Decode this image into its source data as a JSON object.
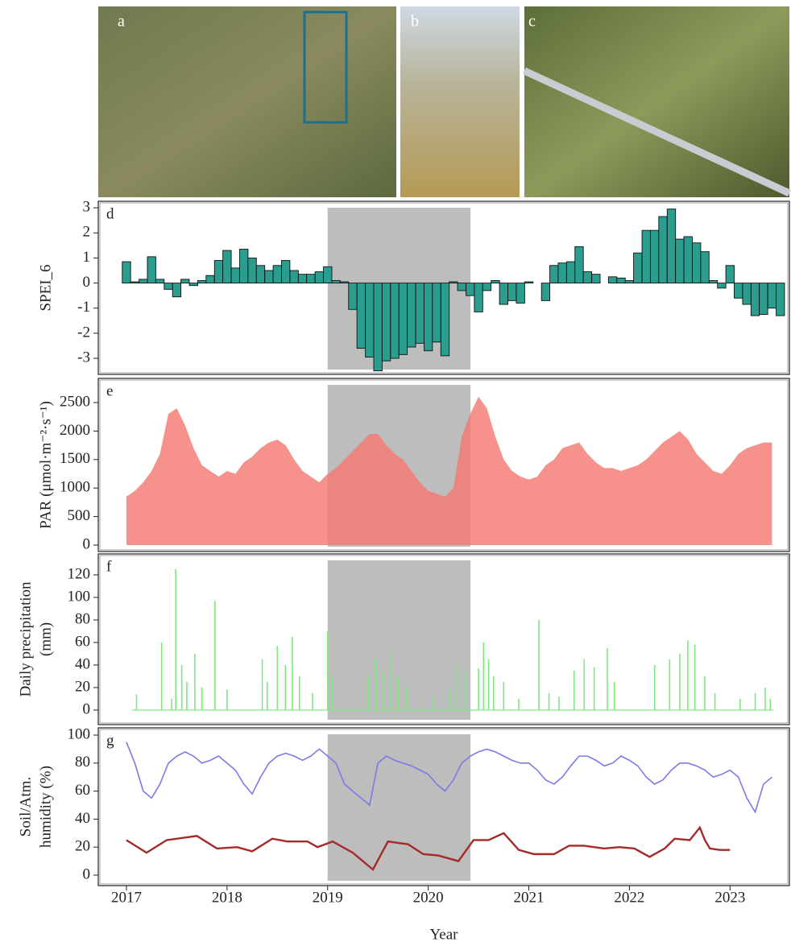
{
  "images": {
    "labels": [
      "a",
      "b",
      "c"
    ]
  },
  "chart_data": [
    {
      "type": "bar",
      "panel_label": "d",
      "ylabel": [
        "SPEI_6"
      ],
      "color": "#2a9d8f",
      "shaded_xrange": [
        2019.0,
        2020.42
      ],
      "xlim": [
        2016.72,
        2023.59
      ],
      "ylim": [
        -3.64,
        3.26
      ],
      "yticks": [
        -3,
        -2,
        -1,
        0,
        1,
        2,
        3
      ],
      "x": [
        2017,
        2017.083,
        2017.167,
        2017.25,
        2017.333,
        2017.417,
        2017.5,
        2017.583,
        2017.667,
        2017.75,
        2017.833,
        2017.917,
        2018,
        2018.083,
        2018.167,
        2018.25,
        2018.333,
        2018.417,
        2018.5,
        2018.583,
        2018.667,
        2018.75,
        2018.833,
        2018.917,
        2019,
        2019.083,
        2019.167,
        2019.25,
        2019.333,
        2019.417,
        2019.5,
        2019.583,
        2019.667,
        2019.75,
        2019.833,
        2019.917,
        2020,
        2020.083,
        2020.167,
        2020.25,
        2020.333,
        2020.417,
        2020.5,
        2020.583,
        2020.667,
        2020.75,
        2020.833,
        2020.917,
        2021,
        2021.083,
        2021.167,
        2021.25,
        2021.333,
        2021.417,
        2021.5,
        2021.583,
        2021.667,
        2021.75,
        2021.833,
        2021.917,
        2022,
        2022.083,
        2022.167,
        2022.25,
        2022.333,
        2022.417,
        2022.5,
        2022.583,
        2022.667,
        2022.75,
        2022.833,
        2022.917,
        2023,
        2023.083,
        2023.167,
        2023.25,
        2023.333,
        2023.417,
        2023.5
      ],
      "values": [
        0.85,
        0.05,
        0.15,
        1.05,
        0.15,
        -0.25,
        -0.55,
        0.15,
        -0.1,
        0.1,
        0.3,
        0.9,
        1.3,
        0.6,
        1.35,
        1.0,
        0.7,
        0.5,
        0.7,
        0.9,
        0.5,
        0.35,
        0.35,
        0.45,
        0.65,
        0.1,
        0.05,
        -1.05,
        -2.6,
        -2.95,
        -3.5,
        -3.1,
        -3.0,
        -2.85,
        -2.55,
        -2.4,
        -2.7,
        -2.35,
        -2.9,
        0.05,
        -0.3,
        -0.5,
        -1.15,
        -0.3,
        0.1,
        -0.85,
        -0.7,
        -0.8,
        0.05,
        0.0,
        -0.7,
        0.7,
        0.8,
        0.85,
        1.45,
        0.45,
        0.35,
        0.0,
        0.25,
        0.2,
        0.1,
        1.2,
        2.1,
        2.1,
        2.65,
        2.95,
        1.75,
        1.85,
        1.6,
        1.25,
        0.1,
        -0.2,
        0.7,
        -0.6,
        -0.85,
        -1.3,
        -1.25,
        -1.0,
        -1.3
      ]
    },
    {
      "type": "area",
      "panel_label": "e",
      "ylabel": [
        "PAR (μmol·m⁻²·s⁻¹)"
      ],
      "color": "#f47a72",
      "shaded_xrange": [
        2019.0,
        2020.42
      ],
      "xlim": [
        2016.72,
        2023.59
      ],
      "ylim": [
        -113,
        2924
      ],
      "yticks": [
        0,
        500,
        1000,
        1500,
        2000,
        2500
      ],
      "x": [
        2017,
        2017.083,
        2017.167,
        2017.25,
        2017.333,
        2017.417,
        2017.5,
        2017.583,
        2017.667,
        2017.75,
        2017.833,
        2017.917,
        2018,
        2018.083,
        2018.167,
        2018.25,
        2018.333,
        2018.417,
        2018.5,
        2018.583,
        2018.667,
        2018.75,
        2018.833,
        2018.917,
        2019,
        2019.083,
        2019.167,
        2019.25,
        2019.333,
        2019.417,
        2019.5,
        2019.583,
        2019.667,
        2019.75,
        2019.833,
        2019.917,
        2020,
        2020.083,
        2020.167,
        2020.25,
        2020.333,
        2020.417,
        2020.5,
        2020.583,
        2020.667,
        2020.75,
        2020.833,
        2020.917,
        2021,
        2021.083,
        2021.167,
        2021.25,
        2021.333,
        2021.417,
        2021.5,
        2021.583,
        2021.667,
        2021.75,
        2021.833,
        2021.917,
        2022,
        2022.083,
        2022.167,
        2022.25,
        2022.333,
        2022.417,
        2022.5,
        2022.583,
        2022.667,
        2022.75,
        2022.833,
        2022.917,
        2023,
        2023.083,
        2023.167,
        2023.25,
        2023.333,
        2023.417
      ],
      "values": [
        850,
        950,
        1100,
        1300,
        1600,
        2300,
        2400,
        2100,
        1700,
        1400,
        1300,
        1200,
        1300,
        1250,
        1450,
        1550,
        1700,
        1800,
        1850,
        1750,
        1500,
        1300,
        1200,
        1100,
        1250,
        1350,
        1500,
        1650,
        1800,
        1950,
        1950,
        1750,
        1600,
        1500,
        1300,
        1100,
        950,
        900,
        850,
        1000,
        1900,
        2300,
        2600,
        2400,
        1900,
        1500,
        1300,
        1200,
        1150,
        1200,
        1400,
        1500,
        1700,
        1750,
        1800,
        1600,
        1450,
        1350,
        1350,
        1300,
        1350,
        1400,
        1500,
        1650,
        1800,
        1900,
        2000,
        1850,
        1600,
        1450,
        1300,
        1250,
        1400,
        1600,
        1700,
        1750,
        1800,
        1800
      ]
    },
    {
      "type": "stem",
      "panel_label": "f",
      "ylabel": [
        "Daily precipitation",
        "(mm)"
      ],
      "color": "#7ee87e",
      "shaded_xrange": [
        2019.0,
        2020.42
      ],
      "xlim": [
        2016.72,
        2023.59
      ],
      "ylim": [
        -12.9,
        138.6
      ],
      "yticks": [
        0,
        20,
        40,
        60,
        80,
        100,
        120
      ],
      "x": [
        2017.1,
        2017.35,
        2017.45,
        2017.49,
        2017.55,
        2017.6,
        2017.68,
        2017.75,
        2017.88,
        2018.0,
        2018.35,
        2018.4,
        2018.5,
        2018.58,
        2018.65,
        2018.72,
        2018.85,
        2019.0,
        2019.05,
        2019.4,
        2019.48,
        2019.55,
        2019.63,
        2019.7,
        2019.78,
        2020.05,
        2020.22,
        2020.3,
        2020.38,
        2020.5,
        2020.55,
        2020.6,
        2020.65,
        2020.75,
        2020.9,
        2021.1,
        2021.2,
        2021.3,
        2021.45,
        2021.55,
        2021.65,
        2021.78,
        2021.85,
        2022.25,
        2022.4,
        2022.5,
        2022.58,
        2022.65,
        2022.75,
        2022.85,
        2023.1,
        2023.25,
        2023.35,
        2023.4
      ],
      "values": [
        14,
        60,
        10,
        125,
        40,
        25,
        50,
        20,
        97,
        18,
        45,
        25,
        57,
        40,
        65,
        30,
        15,
        70,
        30,
        30,
        46,
        35,
        52,
        30,
        20,
        12,
        20,
        40,
        35,
        37,
        60,
        45,
        30,
        25,
        10,
        80,
        15,
        12,
        35,
        45,
        38,
        55,
        25,
        40,
        45,
        50,
        62,
        58,
        30,
        15,
        10,
        15,
        20,
        10
      ]
    },
    {
      "type": "line",
      "panel_label": "g",
      "ylabel": [
        "Soil/Atm.",
        "humidity (%)"
      ],
      "shaded_xrange": [
        2019.0,
        2020.42
      ],
      "xlim": [
        2016.72,
        2023.59
      ],
      "ylim": [
        -7.5,
        105.2
      ],
      "yticks": [
        0,
        20,
        40,
        60,
        80,
        100
      ],
      "xticks": [
        2017,
        2018,
        2019,
        2020,
        2021,
        2022,
        2023
      ],
      "xlabel": "Year",
      "series": [
        {
          "color": "#7b7be8",
          "x": [
            2017,
            2017.083,
            2017.167,
            2017.25,
            2017.333,
            2017.417,
            2017.5,
            2017.583,
            2017.667,
            2017.75,
            2017.833,
            2017.917,
            2018,
            2018.083,
            2018.167,
            2018.25,
            2018.333,
            2018.417,
            2018.5,
            2018.583,
            2018.667,
            2018.75,
            2018.833,
            2018.917,
            2019,
            2019.083,
            2019.167,
            2019.25,
            2019.333,
            2019.417,
            2019.5,
            2019.583,
            2019.667,
            2019.75,
            2019.833,
            2019.917,
            2020,
            2020.083,
            2020.167,
            2020.25,
            2020.333,
            2020.417,
            2020.5,
            2020.583,
            2020.667,
            2020.75,
            2020.833,
            2020.917,
            2021,
            2021.083,
            2021.167,
            2021.25,
            2021.333,
            2021.417,
            2021.5,
            2021.583,
            2021.667,
            2021.75,
            2021.833,
            2021.917,
            2022,
            2022.083,
            2022.167,
            2022.25,
            2022.333,
            2022.417,
            2022.5,
            2022.583,
            2022.667,
            2022.75,
            2022.833,
            2022.917,
            2023,
            2023.083,
            2023.167,
            2023.25,
            2023.333,
            2023.417
          ],
          "values": [
            95,
            80,
            60,
            55,
            65,
            80,
            85,
            88,
            85,
            80,
            82,
            85,
            80,
            75,
            65,
            58,
            70,
            80,
            85,
            87,
            85,
            82,
            85,
            90,
            85,
            80,
            65,
            60,
            55,
            50,
            80,
            85,
            82,
            80,
            78,
            75,
            72,
            65,
            60,
            68,
            80,
            85,
            88,
            90,
            88,
            85,
            82,
            80,
            80,
            75,
            68,
            65,
            70,
            78,
            85,
            85,
            82,
            78,
            80,
            85,
            82,
            78,
            70,
            65,
            68,
            75,
            80,
            80,
            78,
            75,
            70,
            72,
            75,
            70,
            55,
            45,
            65,
            70
          ]
        },
        {
          "color": "#a52a2a",
          "x": [
            2017.0,
            2017.2,
            2017.4,
            2017.7,
            2017.9,
            2018.1,
            2018.25,
            2018.45,
            2018.6,
            2018.8,
            2018.9,
            2019.05,
            2019.25,
            2019.45,
            2019.6,
            2019.8,
            2019.95,
            2020.1,
            2020.3,
            2020.45,
            2020.6,
            2020.75,
            2020.9,
            2021.05,
            2021.25,
            2021.4,
            2021.55,
            2021.75,
            2021.9,
            2022.05,
            2022.2,
            2022.35,
            2022.45,
            2022.6,
            2022.7,
            2022.75,
            2022.8,
            2022.9,
            2023.0
          ],
          "values": [
            25,
            16,
            25,
            28,
            19,
            20,
            17,
            26,
            24,
            24,
            20,
            24,
            16,
            4,
            24,
            22,
            15,
            14,
            10,
            25,
            25,
            30,
            18,
            15,
            15,
            21,
            21,
            19,
            20,
            19,
            13,
            19,
            26,
            25,
            34,
            25,
            19,
            18,
            18
          ]
        }
      ]
    }
  ]
}
